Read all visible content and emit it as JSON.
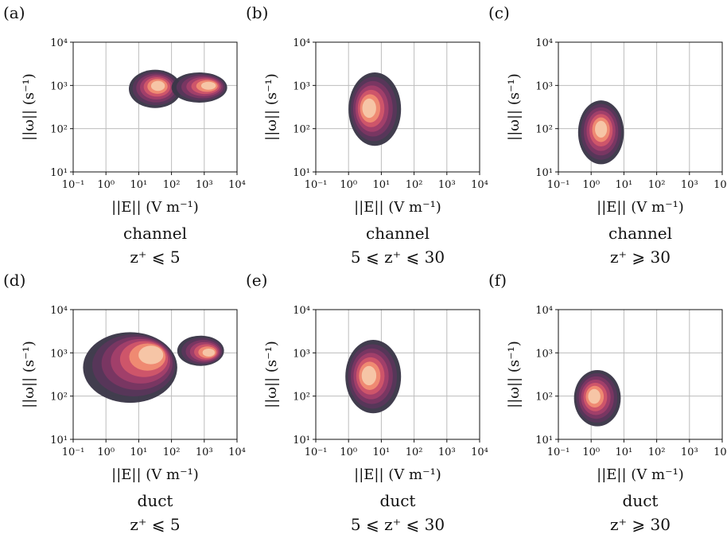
{
  "figure": {
    "axes_text": {
      "xlabel": "||E|| (V m⁻¹)",
      "ylabel": "||ω|| (s⁻¹)"
    },
    "x_ticks": [
      "10⁻¹",
      "10⁰",
      "10¹",
      "10²",
      "10³",
      "10⁴"
    ],
    "y_ticks": [
      "10¹",
      "10²",
      "10³",
      "10⁴"
    ],
    "colors": {
      "outer": "#3b3748",
      "level2": "#58365a",
      "level3": "#7a3762",
      "level4": "#a2406a",
      "level5": "#d0566a",
      "level6": "#ef8c73",
      "core": "#f6c7a7",
      "grid": "#bdbdbd"
    }
  },
  "chart_data": [
    {
      "type": "heatmap",
      "panel": "(a)",
      "caption": "channel",
      "sub": "z⁺ ⩽ 5",
      "xscale": "log",
      "yscale": "log",
      "xlim": [
        0.1,
        10000
      ],
      "ylim": [
        10,
        10000
      ],
      "grid": true,
      "blobs": [
        {
          "x": [
            5,
            200
          ],
          "y": [
            300,
            2300
          ],
          "peak": [
            40,
            1000
          ]
        },
        {
          "x": [
            100,
            5000
          ],
          "y": [
            400,
            2000
          ],
          "peak": [
            1500,
            1000
          ]
        }
      ]
    },
    {
      "type": "heatmap",
      "panel": "(b)",
      "caption": "channel",
      "sub": "5 ⩽ z⁺ ⩽ 30",
      "xscale": "log",
      "yscale": "log",
      "xlim": [
        0.1,
        10000
      ],
      "ylim": [
        10,
        10000
      ],
      "grid": true,
      "blobs": [
        {
          "x": [
            1,
            40
          ],
          "y": [
            40,
            2000
          ],
          "peak": [
            4,
            300
          ]
        }
      ]
    },
    {
      "type": "heatmap",
      "panel": "(c)",
      "caption": "channel",
      "sub": "z⁺ ⩾ 30",
      "xscale": "log",
      "yscale": "log",
      "xlim": [
        0.1,
        10000
      ],
      "ylim": [
        10,
        10000
      ],
      "grid": true,
      "blobs": [
        {
          "x": [
            0.4,
            10
          ],
          "y": [
            15,
            450
          ],
          "peak": [
            2,
            100
          ]
        }
      ]
    },
    {
      "type": "heatmap",
      "panel": "(d)",
      "caption": "duct",
      "sub": "z⁺ ⩽ 5",
      "xscale": "log",
      "yscale": "log",
      "xlim": [
        0.1,
        10000
      ],
      "ylim": [
        10,
        10000
      ],
      "grid": true,
      "blobs": [
        {
          "x": [
            0.2,
            150
          ],
          "y": [
            70,
            3000
          ],
          "peak": [
            30,
            1000
          ]
        },
        {
          "x": [
            150,
            4000
          ],
          "y": [
            500,
            2500
          ],
          "peak": [
            1500,
            1000
          ]
        }
      ]
    },
    {
      "type": "heatmap",
      "panel": "(e)",
      "caption": "duct",
      "sub": "5 ⩽ z⁺ ⩽ 30",
      "xscale": "log",
      "yscale": "log",
      "xlim": [
        0.1,
        10000
      ],
      "ylim": [
        10,
        10000
      ],
      "grid": true,
      "blobs": [
        {
          "x": [
            0.8,
            40
          ],
          "y": [
            40,
            2000
          ],
          "peak": [
            4,
            300
          ]
        }
      ]
    },
    {
      "type": "heatmap",
      "panel": "(f)",
      "caption": "duct",
      "sub": "z⁺ ⩾ 30",
      "xscale": "log",
      "yscale": "log",
      "xlim": [
        0.1,
        10000
      ],
      "ylim": [
        10,
        10000
      ],
      "grid": true,
      "blobs": [
        {
          "x": [
            0.3,
            8
          ],
          "y": [
            20,
            400
          ],
          "peak": [
            1.2,
            100
          ]
        }
      ]
    }
  ]
}
